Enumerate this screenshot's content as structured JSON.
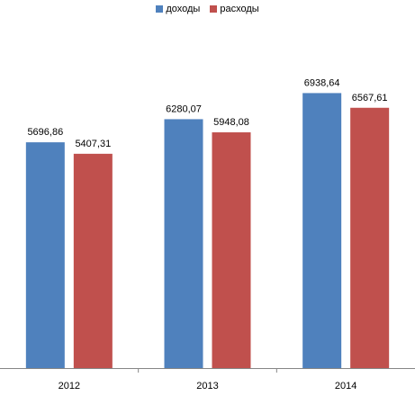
{
  "chart_data": {
    "type": "bar",
    "categories": [
      "2012",
      "2013",
      "2014"
    ],
    "series": [
      {
        "name": "доходы",
        "values": [
          5696.86,
          6280.07,
          6938.64
        ],
        "labels": [
          "5696,86",
          "6280,07",
          "6938,64"
        ],
        "color": "#4f81bd"
      },
      {
        "name": "расходы",
        "values": [
          5407.31,
          5948.08,
          6567.61
        ],
        "labels": [
          "5407,31",
          "5948,08",
          "6567,61"
        ],
        "color": "#c0504d"
      }
    ],
    "title": "",
    "xlabel": "",
    "ylabel": "",
    "ylim": [
      0,
      8000
    ],
    "grid": false,
    "legend_position": "top-center"
  }
}
